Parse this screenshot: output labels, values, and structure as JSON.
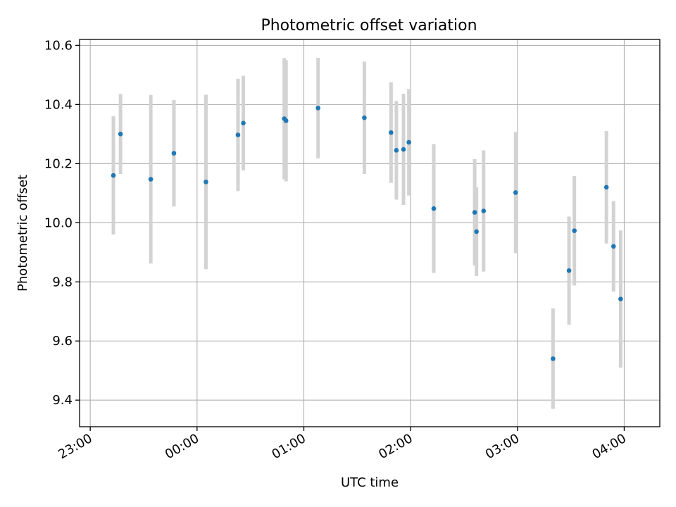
{
  "chart_data": {
    "type": "scatter",
    "title": "Photometric offset variation",
    "xlabel": "UTC time",
    "ylabel": "Photometric offset",
    "x_ticks": [
      "23:00",
      "00:00",
      "01:00",
      "02:00",
      "03:00",
      "04:00"
    ],
    "x_range_minutes": [
      -6,
      320
    ],
    "ylim": [
      9.31,
      10.62
    ],
    "y_ticks": [
      9.4,
      9.6,
      9.8,
      10.0,
      10.2,
      10.4,
      10.6
    ],
    "grid": true,
    "colors": {
      "points": "#1f77b4",
      "error_bars": "#d3d3d3"
    },
    "series": [
      {
        "points": [
          {
            "time": "23:13",
            "y": 10.16,
            "err": 0.2
          },
          {
            "time": "23:17",
            "y": 10.3,
            "err": 0.135
          },
          {
            "time": "23:34",
            "y": 10.147,
            "err": 0.285
          },
          {
            "time": "23:47",
            "y": 10.235,
            "err": 0.18
          },
          {
            "time": "00:05",
            "y": 10.138,
            "err": 0.295
          },
          {
            "time": "00:23",
            "y": 10.297,
            "err": 0.19
          },
          {
            "time": "00:26",
            "y": 10.337,
            "err": 0.16
          },
          {
            "time": "00:49",
            "y": 10.352,
            "err": 0.205
          },
          {
            "time": "00:50",
            "y": 10.345,
            "err": 0.205
          },
          {
            "time": "01:08",
            "y": 10.388,
            "err": 0.17
          },
          {
            "time": "01:34",
            "y": 10.355,
            "err": 0.19
          },
          {
            "time": "01:49",
            "y": 10.305,
            "err": 0.17
          },
          {
            "time": "01:52",
            "y": 10.245,
            "err": 0.167
          },
          {
            "time": "01:56",
            "y": 10.248,
            "err": 0.188
          },
          {
            "time": "01:59",
            "y": 10.272,
            "err": 0.18
          },
          {
            "time": "02:13",
            "y": 10.048,
            "err": 0.218
          },
          {
            "time": "02:36",
            "y": 10.035,
            "err": 0.18
          },
          {
            "time": "02:37",
            "y": 9.97,
            "err": 0.15
          },
          {
            "time": "02:41",
            "y": 10.04,
            "err": 0.205
          },
          {
            "time": "02:59",
            "y": 10.102,
            "err": 0.205
          },
          {
            "time": "03:20",
            "y": 9.54,
            "err": 0.17
          },
          {
            "time": "03:29",
            "y": 9.838,
            "err": 0.183
          },
          {
            "time": "03:32",
            "y": 9.973,
            "err": 0.185
          },
          {
            "time": "03:50",
            "y": 10.12,
            "err": 0.19
          },
          {
            "time": "03:54",
            "y": 9.92,
            "err": 0.153
          },
          {
            "time": "03:58",
            "y": 9.742,
            "err": 0.232
          }
        ]
      }
    ]
  }
}
